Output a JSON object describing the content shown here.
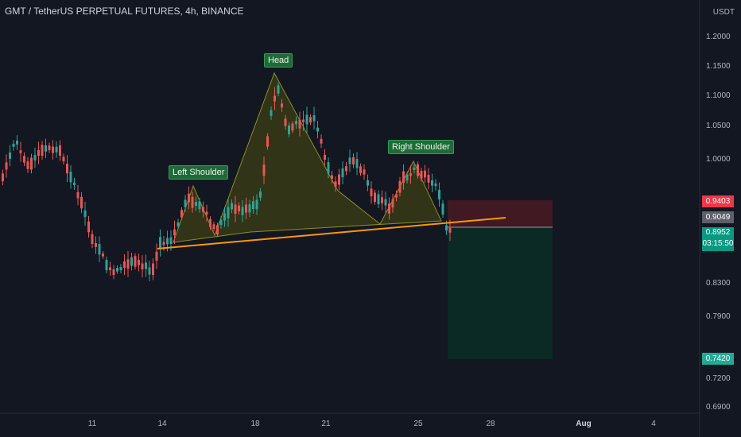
{
  "title": "GMT / TetherUS PERPETUAL FUTURES, 4h, BINANCE",
  "currency": "USDT",
  "price_axis": [
    "1.2000",
    "1.1500",
    "1.1000",
    "1.0500",
    "1.0000",
    "0.8300",
    "0.7900",
    "0.7200",
    "0.6900"
  ],
  "date_axis": [
    {
      "label": "11",
      "bold": false
    },
    {
      "label": "14",
      "bold": false
    },
    {
      "label": "18",
      "bold": false
    },
    {
      "label": "21",
      "bold": false
    },
    {
      "label": "25",
      "bold": false
    },
    {
      "label": "28",
      "bold": false
    },
    {
      "label": "Aug",
      "bold": true
    },
    {
      "label": "4",
      "bold": false
    }
  ],
  "badges": {
    "stop": {
      "text": "0.9403",
      "color": "#f23645"
    },
    "entry": {
      "text": "0.9049",
      "color": "#787b86"
    },
    "current_price": "0.8952",
    "countdown": "03:15:50",
    "target": {
      "text": "0.7420",
      "color": "#22ab94"
    }
  },
  "pattern_labels": {
    "left_shoulder": "Left Shoulder",
    "head": "Head",
    "right_shoulder": "Right Shoulder"
  },
  "colors": {
    "up": "#26a69a",
    "down": "#ef5350",
    "neckline": "#ff9800",
    "pattern_fill": "#808000"
  }
}
